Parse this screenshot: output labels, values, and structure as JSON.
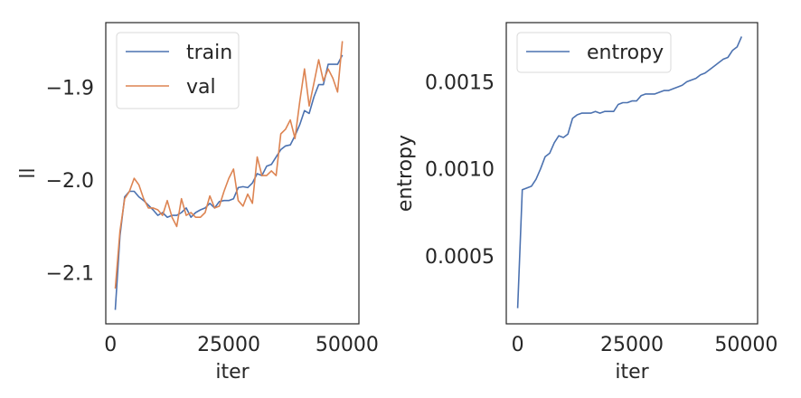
{
  "chart_data": [
    {
      "type": "line",
      "xlabel": "iter",
      "ylabel": "ll",
      "xlim": [
        -1000,
        52500
      ],
      "ylim": [
        -2.155,
        -1.83
      ],
      "xticks": [
        0,
        25000,
        50000
      ],
      "xtick_labels": [
        "0",
        "25000",
        "50000"
      ],
      "yticks": [
        -2.1,
        -2.0,
        -1.9
      ],
      "ytick_labels": [
        "−2.1",
        "−2.0",
        "−1.9"
      ],
      "grid": false,
      "legend_position": "top-left",
      "series": [
        {
          "name": "train",
          "color": "#4c72b0",
          "x": [
            1000,
            2000,
            3000,
            4000,
            5000,
            6000,
            7000,
            8000,
            9000,
            10000,
            11000,
            12000,
            13000,
            14000,
            15000,
            16000,
            17000,
            18000,
            19000,
            20000,
            21000,
            22000,
            23000,
            24000,
            25000,
            26000,
            27000,
            28000,
            29000,
            30000,
            31000,
            32000,
            33000,
            34000,
            35000,
            36000,
            37000,
            38000,
            39000,
            40000,
            41000,
            42000,
            43000,
            44000,
            45000,
            46000,
            47000,
            48000,
            49000
          ],
          "y": [
            -2.14,
            -2.06,
            -2.018,
            -2.012,
            -2.012,
            -2.018,
            -2.022,
            -2.027,
            -2.032,
            -2.038,
            -2.035,
            -2.04,
            -2.038,
            -2.038,
            -2.035,
            -2.03,
            -2.04,
            -2.035,
            -2.032,
            -2.03,
            -2.025,
            -2.03,
            -2.023,
            -2.022,
            -2.022,
            -2.02,
            -2.008,
            -2.007,
            -2.008,
            -2.003,
            -1.993,
            -1.995,
            -1.985,
            -1.983,
            -1.975,
            -1.967,
            -1.963,
            -1.962,
            -1.952,
            -1.94,
            -1.925,
            -1.928,
            -1.91,
            -1.897,
            -1.897,
            -1.875,
            -1.875,
            -1.875,
            -1.865
          ]
        },
        {
          "name": "val",
          "color": "#dd8452",
          "x": [
            1000,
            2000,
            3000,
            4000,
            5000,
            6000,
            7000,
            8000,
            9000,
            10000,
            11000,
            12000,
            13000,
            14000,
            15000,
            16000,
            17000,
            18000,
            19000,
            20000,
            21000,
            22000,
            23000,
            24000,
            25000,
            26000,
            27000,
            28000,
            29000,
            30000,
            31000,
            32000,
            33000,
            34000,
            35000,
            36000,
            37000,
            38000,
            39000,
            40000,
            41000,
            42000,
            43000,
            44000,
            45000,
            46000,
            47000,
            48000,
            49000
          ],
          "y": [
            -2.117,
            -2.055,
            -2.02,
            -2.012,
            -1.998,
            -2.005,
            -2.02,
            -2.03,
            -2.03,
            -2.032,
            -2.038,
            -2.022,
            -2.04,
            -2.05,
            -2.02,
            -2.038,
            -2.035,
            -2.04,
            -2.04,
            -2.035,
            -2.017,
            -2.03,
            -2.028,
            -2.012,
            -1.998,
            -1.988,
            -2.022,
            -2.028,
            -2.015,
            -2.025,
            -1.975,
            -1.995,
            -1.995,
            -1.99,
            -1.995,
            -1.95,
            -1.945,
            -1.935,
            -1.955,
            -1.915,
            -1.88,
            -1.92,
            -1.895,
            -1.87,
            -1.893,
            -1.88,
            -1.89,
            -1.905,
            -1.85
          ]
        }
      ]
    },
    {
      "type": "line",
      "xlabel": "iter",
      "ylabel": "entropy",
      "xlim": [
        -2500,
        52500
      ],
      "ylim": [
        0.00011,
        0.00184
      ],
      "xticks": [
        0,
        25000,
        50000
      ],
      "xtick_labels": [
        "0",
        "25000",
        "50000"
      ],
      "yticks": [
        0.0005,
        0.001,
        0.0015
      ],
      "ytick_labels": [
        "0.0005",
        "0.0010",
        "0.0015"
      ],
      "grid": false,
      "legend_position": "top-left",
      "series": [
        {
          "name": "entropy",
          "color": "#4c72b0",
          "x": [
            0,
            1000,
            2000,
            3000,
            4000,
            5000,
            6000,
            7000,
            8000,
            9000,
            10000,
            11000,
            12000,
            13000,
            14000,
            15000,
            16000,
            17000,
            18000,
            19000,
            20000,
            21000,
            22000,
            23000,
            24000,
            25000,
            26000,
            27000,
            28000,
            29000,
            30000,
            31000,
            32000,
            33000,
            34000,
            35000,
            36000,
            37000,
            38000,
            39000,
            40000,
            41000,
            42000,
            43000,
            44000,
            45000,
            46000,
            47000,
            48000,
            49000
          ],
          "y": [
            0.0002,
            0.00088,
            0.00089,
            0.0009,
            0.00094,
            0.001,
            0.00107,
            0.00109,
            0.00115,
            0.00119,
            0.00118,
            0.0012,
            0.00129,
            0.00131,
            0.00132,
            0.00132,
            0.00132,
            0.00133,
            0.00132,
            0.00133,
            0.00133,
            0.00133,
            0.00137,
            0.00138,
            0.00138,
            0.00139,
            0.00139,
            0.00142,
            0.00143,
            0.00143,
            0.00143,
            0.00144,
            0.00145,
            0.00145,
            0.00146,
            0.00147,
            0.00148,
            0.0015,
            0.00151,
            0.00152,
            0.00154,
            0.00155,
            0.00157,
            0.00159,
            0.00161,
            0.00163,
            0.00164,
            0.00168,
            0.0017,
            0.00176
          ]
        }
      ]
    }
  ]
}
